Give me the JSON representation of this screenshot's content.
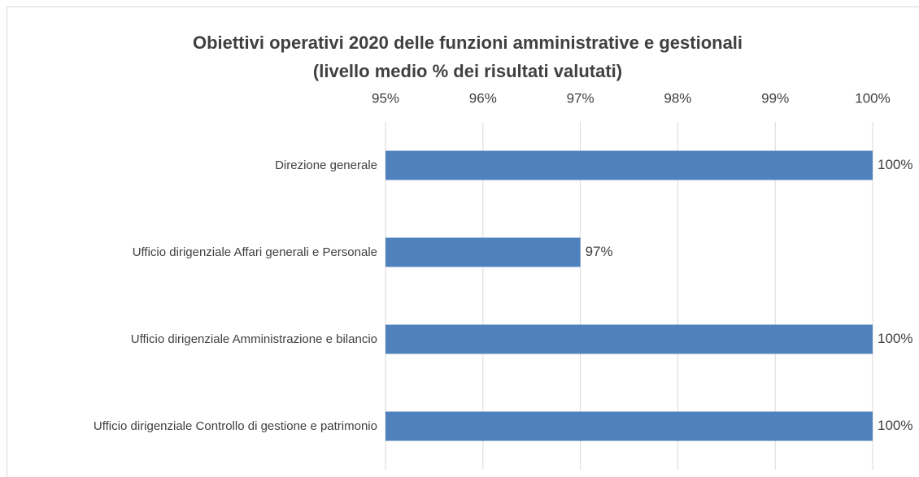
{
  "chart_data": {
    "type": "bar",
    "orientation": "horizontal",
    "title": "Obiettivi operativi 2020 delle funzioni amministrative e gestionali",
    "subtitle": "(livello medio % dei risultati valutati)",
    "categories": [
      "Direzione generale",
      "Ufficio dirigenziale Affari generali e Personale",
      "Ufficio dirigenziale Amministrazione e bilancio",
      "Ufficio dirigenziale Controllo di gestione e patrimonio"
    ],
    "values": [
      100,
      97,
      100,
      100
    ],
    "value_labels": [
      "100%",
      "97%",
      "100%",
      "100%"
    ],
    "color": "#4f81bd",
    "xlim": [
      95,
      100
    ],
    "xticks": [
      {
        "value": 95,
        "label": "95%"
      },
      {
        "value": 96,
        "label": "96%"
      },
      {
        "value": 97,
        "label": "97%"
      },
      {
        "value": 98,
        "label": "98%"
      },
      {
        "value": 99,
        "label": "99%"
      },
      {
        "value": 100,
        "label": "100%"
      }
    ],
    "grid": true
  }
}
